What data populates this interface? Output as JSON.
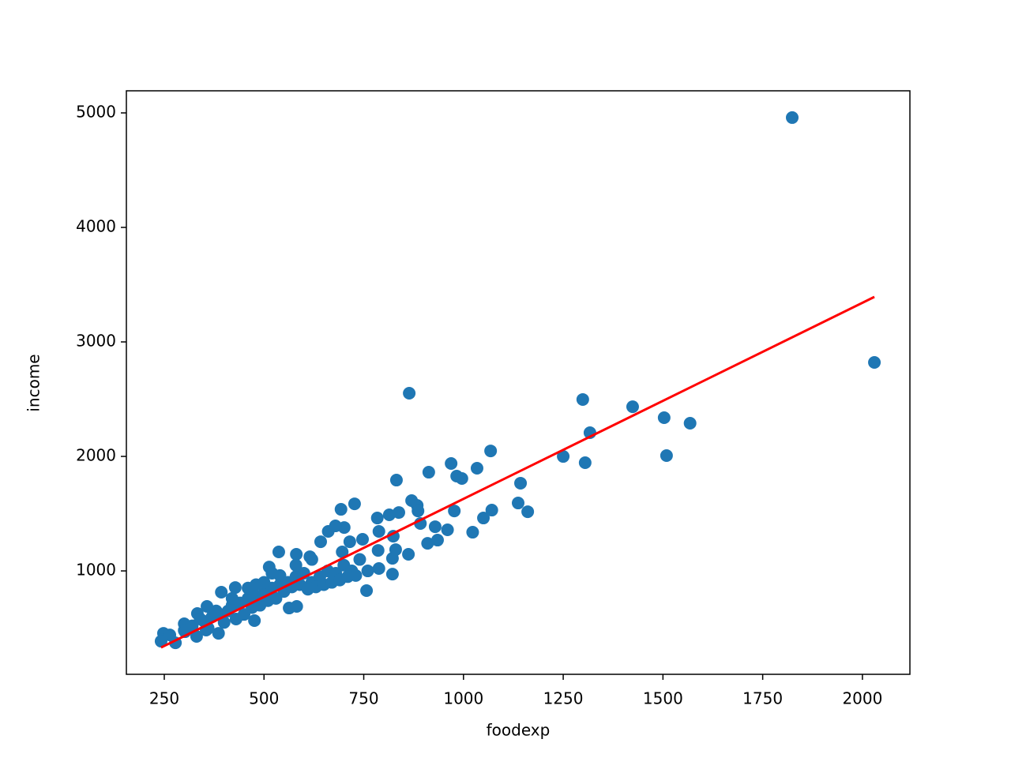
{
  "chart_data": {
    "type": "scatter",
    "xlabel": "foodexp",
    "ylabel": "income",
    "xlim": [
      155,
      2119
    ],
    "ylim": [
      97,
      5193
    ],
    "xticks": [
      250,
      500,
      750,
      1000,
      1250,
      1500,
      1750,
      2000
    ],
    "yticks": [
      1000,
      2000,
      3000,
      4000,
      5000
    ],
    "series": [
      {
        "type": "scatter",
        "color": "#1f77b4",
        "x": [
          1824,
          2030,
          864,
          1299,
          1424,
          1503,
          1568,
          1317,
          1250,
          1509,
          1305,
          1068,
          969,
          1034,
          913,
          983,
          996,
          832,
          1143,
          1137,
          1161,
          1071,
          1050,
          977,
          1023,
          960,
          929,
          935,
          910,
          892,
          870,
          884,
          886,
          814,
          838,
          862,
          822,
          757,
          727,
          693,
          784,
          824,
          788,
          701,
          661,
          679,
          747,
          715,
          786,
          788,
          822,
          830,
          642,
          537,
          513,
          581,
          615,
          696,
          582,
          563,
          476,
          393,
          428,
          357,
          333,
          248,
          278,
          242,
          264,
          300,
          302,
          331,
          386,
          355,
          350,
          370,
          390,
          410,
          420,
          440,
          460,
          480,
          500,
          520,
          540,
          560,
          580,
          600,
          620,
          640,
          660,
          680,
          700,
          720,
          740,
          400,
          430,
          450,
          470,
          490,
          510,
          530,
          550,
          570,
          590,
          610,
          630,
          650,
          670,
          690,
          710,
          730,
          760,
          380,
          420,
          460,
          500,
          540,
          580,
          620,
          320,
          300,
          360,
          340,
          480,
          520
        ],
        "values": [
          4959,
          2821,
          2552,
          2497,
          2434,
          2338,
          2290,
          2207,
          2000,
          2007,
          1945,
          2048,
          1938,
          1897,
          1862,
          1828,
          1807,
          1793,
          1766,
          1593,
          1517,
          1531,
          1462,
          1524,
          1338,
          1359,
          1386,
          1269,
          1241,
          1414,
          1614,
          1572,
          1524,
          1490,
          1510,
          1145,
          972,
          828,
          1586,
          1538,
          1462,
          1303,
          1345,
          1379,
          1345,
          1393,
          1276,
          1255,
          1179,
          1021,
          1110,
          1186,
          1255,
          1166,
          1034,
          1145,
          1124,
          1166,
          690,
          676,
          566,
          814,
          855,
          690,
          628,
          455,
          372,
          386,
          441,
          538,
          469,
          428,
          455,
          483,
          560,
          600,
          620,
          650,
          700,
          720,
          760,
          780,
          800,
          850,
          880,
          900,
          950,
          980,
          900,
          950,
          1000,
          980,
          1050,
          1000,
          1100,
          550,
          580,
          620,
          680,
          700,
          740,
          760,
          820,
          860,
          880,
          840,
          860,
          880,
          900,
          920,
          950,
          960,
          1000,
          650,
          760,
          850,
          900,
          960,
          1050,
          1100,
          520,
          480,
          500,
          580,
          880,
          980
        ]
      },
      {
        "type": "line",
        "color": "#ff0000",
        "x": [
          242,
          2030
        ],
        "values": [
          331,
          3393
        ]
      }
    ]
  }
}
